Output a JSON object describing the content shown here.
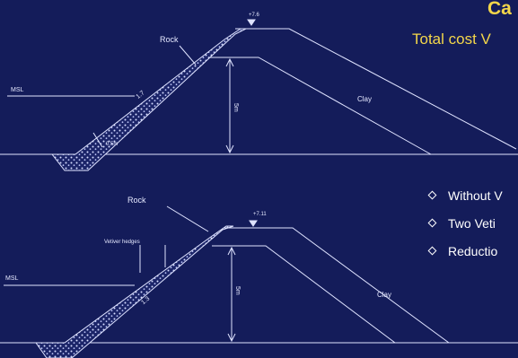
{
  "title": "Ca",
  "subtitle": "Total cost V",
  "bullets": [
    "Without V",
    "Two Veti",
    "Reductio"
  ],
  "top_section": {
    "rock_label": "Rock",
    "msl_label": "MSL",
    "slope_label": "1.7",
    "clay_label": "Clay",
    "height_label": "5m",
    "toe_label": "0.5m",
    "crest_level": "+7.6"
  },
  "bottom_section": {
    "rock_label": "Rock",
    "vetiver_label": "Vetiver hedges",
    "msl_label": "MSL",
    "slope_label": "1.3",
    "clay_label": "Clay",
    "height_label": "5m",
    "crest_level": "+7.11"
  },
  "colors": {
    "background": "#141c5a",
    "line": "#dfe3ff",
    "title": "#f3d64a"
  }
}
